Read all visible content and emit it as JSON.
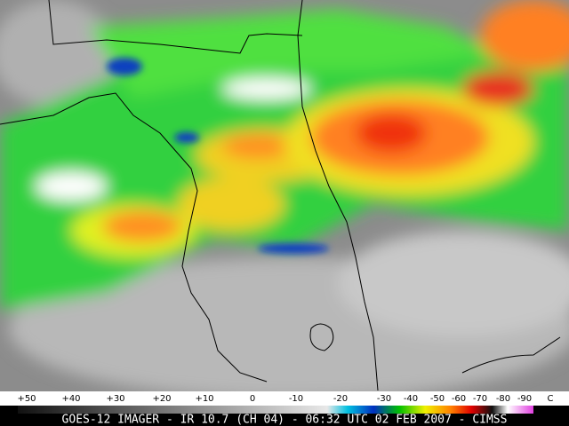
{
  "scale": {
    "labels": [
      "+50",
      "+40",
      "+30",
      "+20",
      "+10",
      "0",
      "-10",
      "-20",
      "-30",
      "-40",
      "-50",
      "-60",
      "-70",
      "-80",
      "-90",
      "C"
    ]
  },
  "caption": "GOES-12 IMAGER - IR 10.7 (CH 04) - 06:32 UTC 02 FEB 2007 - CIMSS"
}
